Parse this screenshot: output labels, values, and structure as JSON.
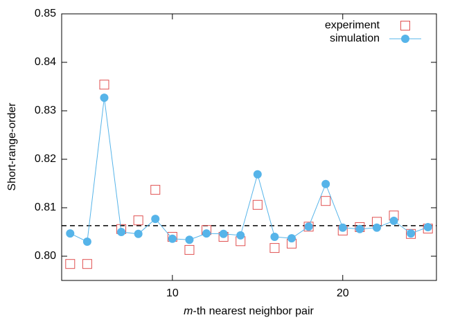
{
  "chart_data": {
    "type": "line",
    "x_label": {
      "var": "m",
      "text": "-th nearest neighbor pair"
    },
    "y_label": "Short-range-order",
    "x": [
      4,
      5,
      6,
      7,
      8,
      9,
      10,
      11,
      12,
      13,
      14,
      15,
      16,
      17,
      18,
      19,
      20,
      21,
      22,
      23,
      24,
      25
    ],
    "series": [
      {
        "name": "experiment",
        "color": "#e05050",
        "marker": "open-square",
        "line": false,
        "values": [
          0.7984,
          0.7984,
          0.8354,
          0.8056,
          0.8074,
          0.8137,
          0.804,
          0.8013,
          0.8054,
          0.804,
          0.8031,
          0.8106,
          0.8017,
          0.8026,
          0.8061,
          0.8114,
          0.8053,
          0.806,
          0.8071,
          0.8084,
          0.8046,
          0.8057
        ]
      },
      {
        "name": "simulation",
        "color": "#56b4e9",
        "marker": "filled-circle",
        "line": true,
        "values": [
          0.8047,
          0.803,
          0.8327,
          0.805,
          0.8046,
          0.8077,
          0.8036,
          0.8034,
          0.8047,
          0.8046,
          0.8043,
          0.8169,
          0.804,
          0.8037,
          0.8061,
          0.8149,
          0.8059,
          0.8056,
          0.8059,
          0.8073,
          0.8047,
          0.806
        ]
      }
    ],
    "reference_line": 0.8063,
    "xlim": [
      3.5,
      25.5
    ],
    "xticks": [
      10,
      20
    ],
    "ylim": [
      0.795,
      0.85
    ],
    "yticks": [
      {
        "value": 0.8,
        "label": "0.80"
      },
      {
        "value": 0.81,
        "label": "0.81"
      },
      {
        "value": 0.82,
        "label": "0.82"
      },
      {
        "value": 0.83,
        "label": "0.83"
      },
      {
        "value": 0.84,
        "label": "0.84"
      },
      {
        "value": 0.85,
        "label": "0.85"
      }
    ],
    "legend": "top-right",
    "grid": false
  }
}
